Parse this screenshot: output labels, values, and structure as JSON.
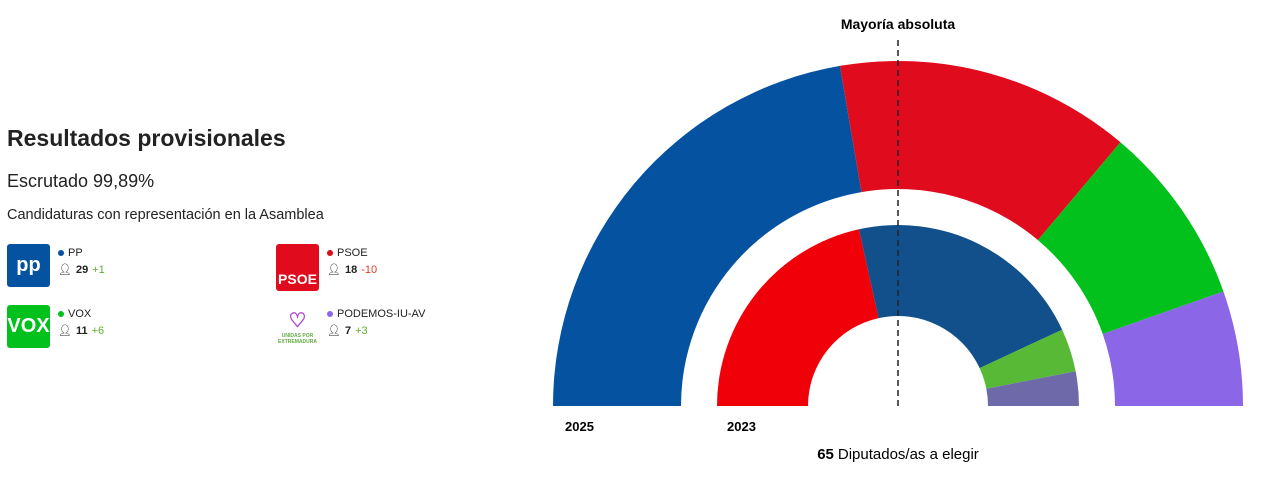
{
  "header": {
    "title": "Resultados provisionales",
    "scrutiny": "Escrutado 99,89%",
    "subtitle": "Candidaturas con representación en la Asamblea"
  },
  "parties": [
    {
      "name": "PP",
      "seats": "29",
      "change": "+1",
      "color": "#0553a0",
      "change_color": "#5fb02e",
      "logo_text": "pp"
    },
    {
      "name": "PSOE",
      "seats": "18",
      "change": "-10",
      "color": "#e00b1c",
      "change_color": "#e03a2a",
      "logo_text": "PSOE"
    },
    {
      "name": "VOX",
      "seats": "11",
      "change": "+6",
      "color": "#03c11c",
      "change_color": "#5fb02e",
      "logo_text": "VOX"
    },
    {
      "name": "PODEMOS-IU-AV",
      "seats": "7",
      "change": "+3",
      "color": "#8b66e6",
      "change_color": "#5fb02e",
      "logo_text": "UNIDAS POR EXTREMADURA"
    }
  ],
  "chart_data": {
    "type": "semicircle-donut",
    "total_seats": 65,
    "majority_label": "Mayoría absoluta",
    "majority_seats": 33,
    "footer_number": "65",
    "footer_text": "Diputados/as a elegir",
    "series": [
      {
        "name": "2025",
        "values": [
          {
            "party": "PP",
            "seats": 29,
            "color": "#0553a0"
          },
          {
            "party": "PSOE",
            "seats": 18,
            "color": "#e00b1c"
          },
          {
            "party": "VOX",
            "seats": 11,
            "color": "#03c11c"
          },
          {
            "party": "PODEMOS-IU-AV",
            "seats": 7,
            "color": "#8b66e6"
          }
        ]
      },
      {
        "name": "2023",
        "values": [
          {
            "party": "PSOE",
            "seats": 28,
            "color": "#f00008"
          },
          {
            "party": "PP",
            "seats": 28,
            "color": "#11508a"
          },
          {
            "party": "VOX",
            "seats": 5,
            "color": "#58b936"
          },
          {
            "party": "PODEMOS-IU-AV",
            "seats": 4,
            "color": "#6e69a8"
          }
        ]
      }
    ]
  }
}
